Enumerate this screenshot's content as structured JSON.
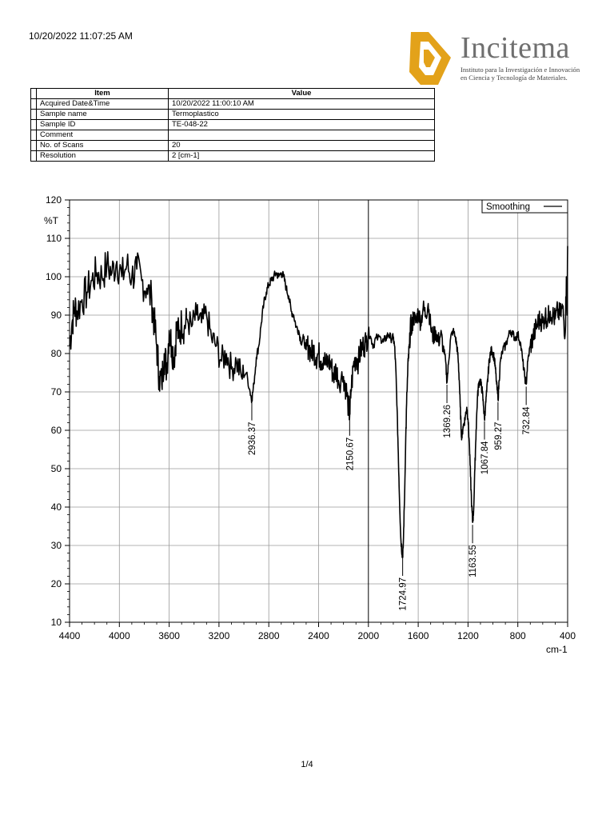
{
  "header": {
    "timestamp": "10/20/2022 11:07:25 AM"
  },
  "logo": {
    "name": "Incitema",
    "tagline_line1": "Instituto para la Investigación e Innovación",
    "tagline_line2": "en Ciencia y Tecnología de Materiales.",
    "colors": {
      "mark": "#e3a21a",
      "text": "#6f6f6f"
    }
  },
  "info_table": {
    "headers": [
      "Item",
      "Value"
    ],
    "rows": [
      [
        "Acquired Date&Time",
        "10/20/2022 11:00:10 AM"
      ],
      [
        "Sample name",
        "Termoplastico"
      ],
      [
        "Sample ID",
        "TE-048-22"
      ],
      [
        "Comment",
        ""
      ],
      [
        "No. of Scans",
        "20"
      ],
      [
        "Resolution",
        "2 [cm-1]"
      ]
    ]
  },
  "chart_data": {
    "type": "line",
    "ylabel": "%T",
    "xlabel": "cm-1",
    "xlim": [
      4400,
      400
    ],
    "ylim": [
      10,
      120
    ],
    "x_reversed": true,
    "grid": true,
    "legend_position": "top-right",
    "series": [
      {
        "name": "Smoothing",
        "color": "#000000",
        "points": [
          [
            4400,
            82
          ],
          [
            4380,
            88
          ],
          [
            4360,
            92
          ],
          [
            4340,
            91
          ],
          [
            4300,
            94
          ],
          [
            4260,
            96
          ],
          [
            4220,
            99
          ],
          [
            4180,
            101
          ],
          [
            4140,
            100
          ],
          [
            4100,
            103
          ],
          [
            4060,
            101
          ],
          [
            4020,
            104
          ],
          [
            3980,
            100
          ],
          [
            3940,
            103
          ],
          [
            3900,
            100
          ],
          [
            3860,
            102
          ],
          [
            3820,
            99
          ],
          [
            3780,
            97
          ],
          [
            3740,
            94
          ],
          [
            3720,
            88
          ],
          [
            3700,
            82
          ],
          [
            3680,
            74
          ],
          [
            3660,
            72
          ],
          [
            3640,
            80
          ],
          [
            3620,
            76
          ],
          [
            3600,
            86
          ],
          [
            3580,
            82
          ],
          [
            3560,
            79
          ],
          [
            3540,
            87
          ],
          [
            3520,
            84
          ],
          [
            3500,
            88
          ],
          [
            3480,
            86
          ],
          [
            3460,
            89
          ],
          [
            3420,
            87
          ],
          [
            3380,
            90
          ],
          [
            3340,
            88
          ],
          [
            3300,
            90
          ],
          [
            3260,
            84
          ],
          [
            3220,
            82
          ],
          [
            3180,
            78
          ],
          [
            3140,
            80
          ],
          [
            3100,
            76
          ],
          [
            3060,
            78
          ],
          [
            3020,
            74
          ],
          [
            2980,
            75
          ],
          [
            2950,
            70
          ],
          [
            2936,
            68
          ],
          [
            2920,
            72
          ],
          [
            2900,
            79
          ],
          [
            2880,
            82
          ],
          [
            2860,
            88
          ],
          [
            2840,
            93
          ],
          [
            2820,
            96
          ],
          [
            2800,
            98
          ],
          [
            2780,
            99
          ],
          [
            2760,
            100
          ],
          [
            2740,
            101
          ],
          [
            2720,
            100
          ],
          [
            2700,
            101
          ],
          [
            2680,
            100
          ],
          [
            2660,
            97
          ],
          [
            2640,
            95
          ],
          [
            2620,
            91
          ],
          [
            2600,
            90
          ],
          [
            2580,
            87
          ],
          [
            2560,
            86
          ],
          [
            2540,
            83
          ],
          [
            2520,
            84
          ],
          [
            2500,
            81
          ],
          [
            2480,
            82
          ],
          [
            2460,
            80
          ],
          [
            2440,
            81
          ],
          [
            2420,
            79
          ],
          [
            2400,
            80
          ],
          [
            2380,
            78
          ],
          [
            2360,
            79
          ],
          [
            2340,
            77
          ],
          [
            2320,
            78
          ],
          [
            2300,
            77
          ],
          [
            2280,
            74
          ],
          [
            2260,
            76
          ],
          [
            2240,
            73
          ],
          [
            2200,
            74
          ],
          [
            2180,
            71
          ],
          [
            2160,
            66
          ],
          [
            2150,
            64
          ],
          [
            2140,
            70
          ],
          [
            2120,
            77
          ],
          [
            2100,
            79
          ],
          [
            2080,
            78
          ],
          [
            2060,
            81
          ],
          [
            2040,
            82
          ],
          [
            2020,
            83
          ],
          [
            2000,
            86
          ],
          [
            1980,
            84
          ],
          [
            1960,
            82
          ],
          [
            1940,
            84
          ],
          [
            1900,
            84
          ],
          [
            1880,
            83
          ],
          [
            1860,
            84
          ],
          [
            1840,
            85
          ],
          [
            1820,
            84
          ],
          [
            1800,
            84
          ],
          [
            1790,
            82
          ],
          [
            1780,
            76
          ],
          [
            1770,
            66
          ],
          [
            1760,
            54
          ],
          [
            1750,
            42
          ],
          [
            1740,
            32
          ],
          [
            1730,
            28
          ],
          [
            1725,
            27.5
          ],
          [
            1720,
            30
          ],
          [
            1710,
            42
          ],
          [
            1700,
            58
          ],
          [
            1690,
            70
          ],
          [
            1680,
            78
          ],
          [
            1670,
            82
          ],
          [
            1660,
            88
          ],
          [
            1650,
            86
          ],
          [
            1640,
            90
          ],
          [
            1620,
            88
          ],
          [
            1600,
            91
          ],
          [
            1580,
            88
          ],
          [
            1560,
            92
          ],
          [
            1540,
            90
          ],
          [
            1520,
            93
          ],
          [
            1500,
            87
          ],
          [
            1480,
            84
          ],
          [
            1460,
            86
          ],
          [
            1440,
            83
          ],
          [
            1420,
            85
          ],
          [
            1400,
            82
          ],
          [
            1380,
            78
          ],
          [
            1369,
            72.5
          ],
          [
            1355,
            78
          ],
          [
            1340,
            84
          ],
          [
            1320,
            86
          ],
          [
            1300,
            84
          ],
          [
            1290,
            82
          ],
          [
            1280,
            79
          ],
          [
            1270,
            73
          ],
          [
            1262,
            66
          ],
          [
            1255,
            60
          ],
          [
            1250,
            58
          ],
          [
            1240,
            61
          ],
          [
            1230,
            62
          ],
          [
            1220,
            64
          ],
          [
            1210,
            66
          ],
          [
            1200,
            63
          ],
          [
            1190,
            57
          ],
          [
            1180,
            48
          ],
          [
            1170,
            40
          ],
          [
            1163,
            36
          ],
          [
            1155,
            39
          ],
          [
            1145,
            50
          ],
          [
            1135,
            60
          ],
          [
            1125,
            68
          ],
          [
            1115,
            72
          ],
          [
            1105,
            73
          ],
          [
            1095,
            72
          ],
          [
            1085,
            70
          ],
          [
            1075,
            66
          ],
          [
            1068,
            63
          ],
          [
            1060,
            66
          ],
          [
            1050,
            70
          ],
          [
            1040,
            74
          ],
          [
            1030,
            78
          ],
          [
            1020,
            80
          ],
          [
            1010,
            81
          ],
          [
            1000,
            80
          ],
          [
            990,
            79
          ],
          [
            980,
            76
          ],
          [
            970,
            72
          ],
          [
            959,
            68
          ],
          [
            950,
            73
          ],
          [
            940,
            78
          ],
          [
            920,
            81
          ],
          [
            900,
            82
          ],
          [
            880,
            84
          ],
          [
            860,
            86
          ],
          [
            840,
            85
          ],
          [
            820,
            84
          ],
          [
            800,
            85
          ],
          [
            780,
            83
          ],
          [
            760,
            78
          ],
          [
            745,
            74
          ],
          [
            733,
            72
          ],
          [
            720,
            78
          ],
          [
            700,
            82
          ],
          [
            680,
            84
          ],
          [
            660,
            86
          ],
          [
            640,
            88
          ],
          [
            620,
            89
          ],
          [
            600,
            88
          ],
          [
            580,
            90
          ],
          [
            560,
            89
          ],
          [
            540,
            91
          ],
          [
            520,
            90
          ],
          [
            500,
            89
          ],
          [
            480,
            91
          ],
          [
            460,
            90
          ],
          [
            440,
            92
          ],
          [
            420,
            85
          ],
          [
            410,
            100
          ],
          [
            404,
            90
          ],
          [
            400,
            108
          ]
        ]
      }
    ],
    "peak_labels": [
      {
        "x": 2936.37,
        "y": 68,
        "label": "2936.37"
      },
      {
        "x": 2150.67,
        "y": 64,
        "label": "2150.67"
      },
      {
        "x": 1724.97,
        "y": 27.5,
        "label": "1724.97"
      },
      {
        "x": 1369.26,
        "y": 72.5,
        "label": "1369.26"
      },
      {
        "x": 1163.55,
        "y": 36,
        "label": "1163.55"
      },
      {
        "x": 1067.84,
        "y": 63,
        "label": "1067.84"
      },
      {
        "x": 959.27,
        "y": 68,
        "label": "959.27"
      },
      {
        "x": 732.84,
        "y": 72,
        "label": "732.84"
      }
    ]
  },
  "footer": {
    "page": "1/4"
  }
}
